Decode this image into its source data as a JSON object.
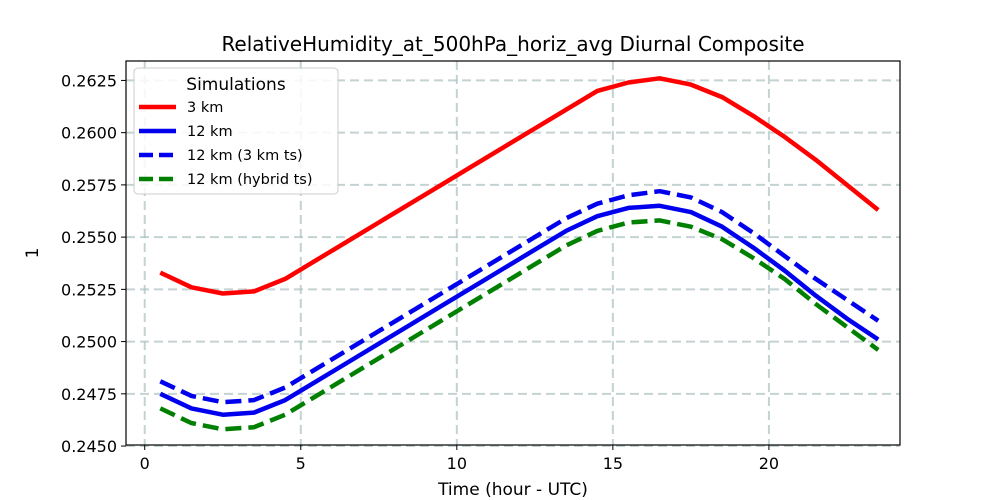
{
  "chart_data": {
    "type": "line",
    "title": "RelativeHumidity_at_500hPa_horiz_avg Diurnal Composite",
    "xlabel": "Time (hour - UTC)",
    "ylabel": "1",
    "xlim": [
      -0.6,
      24.2
    ],
    "ylim": [
      0.24505,
      0.26343
    ],
    "xticks": [
      0,
      5,
      10,
      15,
      20
    ],
    "xtick_labels": [
      "0",
      "5",
      "10",
      "15",
      "20"
    ],
    "yticks": [
      0.245,
      0.2475,
      0.25,
      0.2525,
      0.255,
      0.2575,
      0.26,
      0.2625
    ],
    "ytick_labels": [
      "0.2450",
      "0.2475",
      "0.2500",
      "0.2525",
      "0.2550",
      "0.2575",
      "0.2600",
      "0.2625"
    ],
    "grid": true,
    "legend": {
      "title": "Simulations",
      "placement": "upper-left"
    },
    "x": [
      0.5,
      1.5,
      2.5,
      3.5,
      4.5,
      5.5,
      6.5,
      7.5,
      8.5,
      9.5,
      10.5,
      11.5,
      12.5,
      13.5,
      14.5,
      15.5,
      16.5,
      17.5,
      18.5,
      19.5,
      20.5,
      21.5,
      22.5,
      23.5
    ],
    "series": [
      {
        "name": "3 km",
        "color": "#ff0000",
        "dash": "solid",
        "values": [
          0.2533,
          0.2526,
          0.2523,
          0.2524,
          0.253,
          0.2539,
          0.2548,
          0.2557,
          0.2566,
          0.2575,
          0.2584,
          0.2593,
          0.2602,
          0.2611,
          0.262,
          0.2624,
          0.2626,
          0.2623,
          0.2617,
          0.2608,
          0.2598,
          0.2587,
          0.2575,
          0.2563
        ]
      },
      {
        "name": "12 km",
        "color": "#0000ee",
        "dash": "solid",
        "values": [
          0.2475,
          0.2468,
          0.2465,
          0.2466,
          0.2472,
          0.2481,
          0.249,
          0.2499,
          0.2508,
          0.2517,
          0.2526,
          0.2535,
          0.2544,
          0.2553,
          0.256,
          0.2564,
          0.2565,
          0.2562,
          0.2555,
          0.2545,
          0.2534,
          0.2522,
          0.2511,
          0.2501
        ]
      },
      {
        "name": "12 km (3 km ts)",
        "color": "#0000ee",
        "dash": "dashed",
        "values": [
          0.2481,
          0.2474,
          0.2471,
          0.2472,
          0.2478,
          0.2487,
          0.2496,
          0.2505,
          0.2514,
          0.2523,
          0.2532,
          0.2541,
          0.255,
          0.2559,
          0.2566,
          0.257,
          0.2572,
          0.2569,
          0.2562,
          0.2552,
          0.2541,
          0.253,
          0.252,
          0.251
        ]
      },
      {
        "name": "12 km (hybrid ts)",
        "color": "#008000",
        "dash": "dashed",
        "values": [
          0.2468,
          0.2461,
          0.2458,
          0.2459,
          0.2465,
          0.2474,
          0.2483,
          0.2492,
          0.2501,
          0.251,
          0.2519,
          0.2528,
          0.2537,
          0.2546,
          0.2553,
          0.2557,
          0.2558,
          0.2555,
          0.2549,
          0.254,
          0.253,
          0.2518,
          0.2507,
          0.2496
        ]
      }
    ]
  }
}
